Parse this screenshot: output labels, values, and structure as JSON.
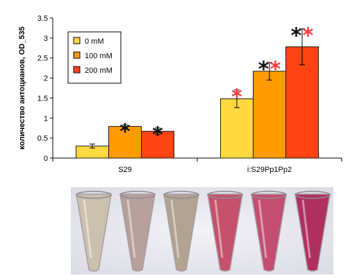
{
  "chart_data": {
    "type": "bar",
    "ylabel": "количество антоцианов, OD_535",
    "ylim": [
      0,
      3.5
    ],
    "yticks": [
      "0",
      "0.5",
      "1",
      "1.5",
      "2",
      "2.5",
      "3",
      "3.5"
    ],
    "categories": [
      "S29",
      "i:S29Pp1Pp2"
    ],
    "series": [
      {
        "name": "0 mM",
        "color": "#ffd93d",
        "values": [
          0.3,
          1.48
        ],
        "errors": [
          0.05,
          0.22
        ]
      },
      {
        "name": "100 mM",
        "color": "#ff9b00",
        "values": [
          0.79,
          2.17
        ],
        "errors": [
          0.04,
          0.22
        ]
      },
      {
        "name": "200 mM",
        "color": "#ff4313",
        "values": [
          0.67,
          2.78
        ],
        "errors": [
          0.08,
          0.45
        ]
      }
    ],
    "grid": false,
    "legend_position": "top-left",
    "annotations": [
      {
        "category": 0,
        "series": 1,
        "marks": [
          {
            "text": "*",
            "color": "#111111"
          }
        ]
      },
      {
        "category": 0,
        "series": 2,
        "marks": [
          {
            "text": "*",
            "color": "#111111"
          }
        ]
      },
      {
        "category": 1,
        "series": 0,
        "marks": [
          {
            "text": "*",
            "color": "#ff3b3b"
          }
        ]
      },
      {
        "category": 1,
        "series": 1,
        "marks": [
          {
            "text": "*",
            "color": "#111111"
          },
          {
            "text": "*",
            "color": "#ff3b3b"
          }
        ]
      },
      {
        "category": 1,
        "series": 2,
        "marks": [
          {
            "text": "*",
            "color": "#111111"
          },
          {
            "text": "*",
            "color": "#ff3b3b"
          }
        ]
      }
    ]
  },
  "photo": {
    "tube_colors": [
      "#cbc0ae",
      "#b79f9c",
      "#b2a290",
      "#c5516c",
      "#c44d72",
      "#b0305d"
    ]
  }
}
